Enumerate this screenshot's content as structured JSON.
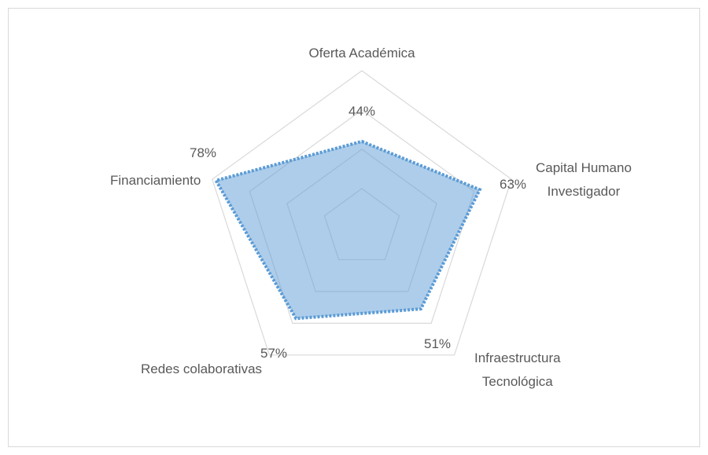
{
  "chart_data": {
    "type": "radar",
    "categories": [
      "Oferta Académica",
      "Capital Humano\nInvestigador",
      "Infraestructura\nTecnológica",
      "Redes colaborativas",
      "Financiamiento"
    ],
    "values": [
      44,
      63,
      51,
      57,
      78
    ],
    "value_labels": [
      "44%",
      "63%",
      "51%",
      "57%",
      "78%"
    ],
    "color": "#5b9bd5",
    "ylim": [
      0,
      80
    ],
    "yticks": [
      20,
      40,
      60,
      80
    ],
    "grid": true
  }
}
